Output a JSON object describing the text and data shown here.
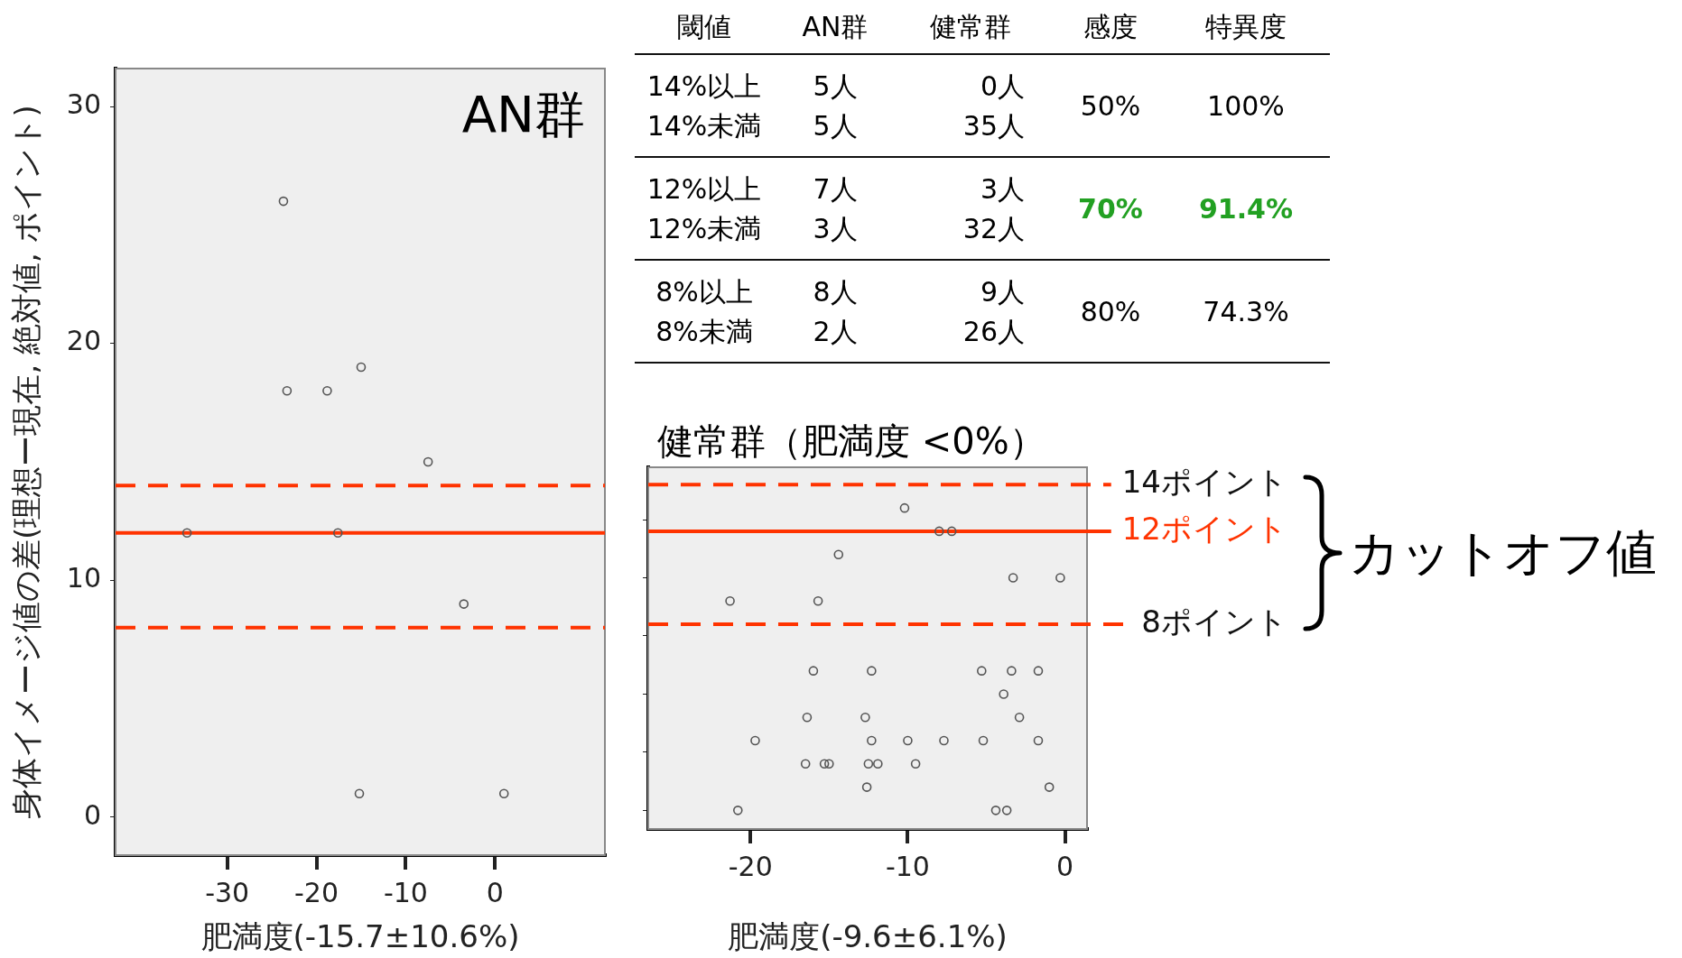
{
  "chart_data": [
    {
      "type": "scatter",
      "title": "AN群",
      "xlabel": "肥満度(-15.7±10.6%)",
      "ylabel": "身体イメージ値の差(理想ー現在, 絶対値, ポイント)",
      "marker": "circle",
      "legend": false,
      "series": [
        {
          "color": "#555555",
          "x": [
            -23.7,
            -23.3,
            -18.8,
            -15.0,
            -7.5,
            -34.5,
            -17.6,
            -3.5,
            -15.2,
            1.0
          ],
          "values": [
            26,
            18,
            18,
            19,
            15,
            12,
            12,
            9,
            1,
            1
          ]
        }
      ],
      "xlim": [
        -42.5,
        12.3
      ],
      "xticks": [
        -30,
        -20,
        -10,
        0
      ],
      "ylim": [
        -1.6,
        31.6
      ],
      "yticks": [
        0,
        10,
        20,
        30
      ],
      "ref_lines": [
        {
          "axis": "y",
          "value": 14,
          "color": "#ff3300",
          "line_style": "dashed"
        },
        {
          "axis": "y",
          "value": 12,
          "color": "#ff3300",
          "line_style": "solid"
        },
        {
          "axis": "y",
          "value": 8,
          "color": "#ff3300",
          "line_style": "dashed"
        }
      ]
    },
    {
      "type": "scatter",
      "title": "健常群（肥満度 <0%）",
      "xlabel": "肥満度(-9.6±6.1%)",
      "marker": "circle",
      "legend": false,
      "tick_labels": "x",
      "series": [
        {
          "color": "#555555",
          "x": [
            -10.2,
            -8.0,
            -7.2,
            -14.4,
            -3.3,
            -0.3,
            -21.3,
            -15.7,
            -16.0,
            -12.3,
            -5.3,
            -3.4,
            -1.7,
            -3.9,
            -16.4,
            -12.7,
            -2.9,
            -19.7,
            -12.3,
            -10.0,
            -7.7,
            -5.2,
            -1.7,
            -16.5,
            -15.3,
            -15.0,
            -12.5,
            -11.9,
            -9.5,
            -12.6,
            -1.0,
            -20.8,
            -4.4,
            -3.7
          ],
          "values": [
            13,
            12,
            12,
            11,
            10,
            10,
            9,
            9,
            6,
            6,
            6,
            6,
            6,
            5,
            4,
            4,
            4,
            3,
            3,
            3,
            3,
            3,
            3,
            2,
            2,
            2,
            2,
            2,
            2,
            1,
            1,
            0,
            0,
            0
          ]
        }
      ],
      "xlim": [
        -26.5,
        1.4
      ],
      "xticks": [
        -20,
        -10,
        0
      ],
      "ylim": [
        -0.8,
        14.75
      ],
      "yticks": [
        {
          "value": 0,
          "label": null
        },
        {
          "value": 2.5,
          "label": null
        },
        {
          "value": 5,
          "label": null
        },
        {
          "value": 7.5,
          "label": null
        },
        {
          "value": 10,
          "label": null
        },
        {
          "value": 12.5,
          "label": null
        }
      ],
      "ref_lines": [
        {
          "axis": "y",
          "value": 14,
          "label": "14ポイント",
          "color": "#ff3300",
          "line_style": "dashed"
        },
        {
          "axis": "y",
          "value": 12,
          "label": "12ポイント",
          "color": "#ff3300",
          "line_style": "solid"
        },
        {
          "axis": "y",
          "value": 8,
          "label": "8ポイント",
          "color": "#ff3300",
          "line_style": "dashed"
        }
      ],
      "annotations": [
        "カットオフ値"
      ]
    },
    {
      "type": "other",
      "annotations": [
        "閾値",
        "AN群",
        "健常群",
        "感度",
        "特異度",
        "14%以上",
        "5人",
        "0人",
        "50%",
        "100%",
        "14%未満",
        "5人",
        "35人",
        "12%以上",
        "7人",
        "3人",
        "70%",
        "91.4%",
        "12%未満",
        "3人",
        "32人",
        "8%以上",
        "8人",
        "9人",
        "80%",
        "74.3%",
        "8%未満",
        "2人",
        "26人"
      ],
      "colors": [
        "#000000",
        "#000000",
        "#000000",
        "#000000",
        "#000000",
        "#000000",
        "#000000",
        "#000000",
        "#000000",
        "#000000",
        "#000000",
        "#000000",
        "#000000",
        "#000000",
        "#000000",
        "#000000",
        "#22a022",
        "#22a022",
        "#000000",
        "#000000",
        "#000000",
        "#000000",
        "#000000",
        "#000000",
        "#000000",
        "#000000",
        "#000000",
        "#000000",
        "#000000"
      ]
    }
  ]
}
